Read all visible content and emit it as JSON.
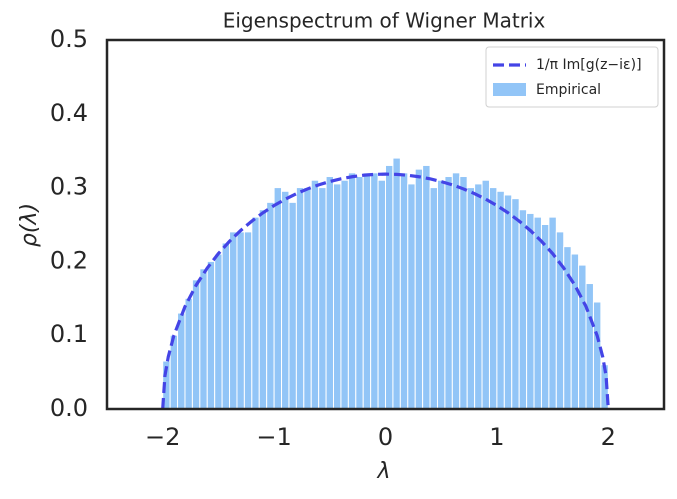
{
  "chart_data": {
    "type": "histogram",
    "title": "Eigenspectrum of Wigner Matrix",
    "x_label": "λ",
    "y_label": "ρ(λ)",
    "xlim": [
      -2.5,
      2.5
    ],
    "ylim": [
      0,
      0.5
    ],
    "xticks": [
      {
        "value": -2,
        "label": "−2"
      },
      {
        "value": -1,
        "label": "−1"
      },
      0,
      1,
      2
    ],
    "yticks": [
      {
        "value": 0,
        "label": "0.0"
      },
      0.1,
      0.2,
      0.3,
      0.4,
      0.5
    ],
    "grid": false,
    "legend": "upper right",
    "histogram": {
      "name": "Empirical",
      "color": "#92c5f7",
      "bins": [
        -2,
        -1.9333,
        -1.8667,
        -1.8,
        -1.7333,
        -1.6667,
        -1.6,
        -1.5333,
        -1.4667,
        -1.4,
        -1.3333,
        -1.2667,
        -1.2,
        -1.1333,
        -1.0667,
        -1,
        -0.9333,
        -0.8667,
        -0.8,
        -0.7333,
        -0.6667,
        -0.6,
        -0.5333,
        -0.4667,
        -0.4,
        -0.3333,
        -0.2667,
        -0.2,
        -0.1333,
        -0.0667,
        0,
        0.0667,
        0.1333,
        0.2,
        0.2667,
        0.3333,
        0.4,
        0.4667,
        0.5333,
        0.6,
        0.6667,
        0.7333,
        0.8,
        0.8667,
        0.9333,
        1,
        1.0667,
        1.1333,
        1.2,
        1.2667,
        1.3333,
        1.4,
        1.4667,
        1.5333,
        1.6,
        1.6667,
        1.7333,
        1.8,
        1.8667,
        1.9333,
        2
      ],
      "values": [
        0.065,
        0.1,
        0.13,
        0.15,
        0.175,
        0.19,
        0.2,
        0.21,
        0.225,
        0.24,
        0.24,
        0.24,
        0.26,
        0.27,
        0.28,
        0.3,
        0.295,
        0.28,
        0.3,
        0.3,
        0.31,
        0.3,
        0.315,
        0.305,
        0.31,
        0.32,
        0.315,
        0.32,
        0.32,
        0.31,
        0.33,
        0.34,
        0.32,
        0.305,
        0.325,
        0.33,
        0.3,
        0.31,
        0.315,
        0.32,
        0.315,
        0.3,
        0.305,
        0.31,
        0.3,
        0.295,
        0.29,
        0.285,
        0.27,
        0.265,
        0.26,
        0.25,
        0.26,
        0.24,
        0.22,
        0.21,
        0.195,
        0.17,
        0.145,
        0.06
      ]
    },
    "line": {
      "name": "1/π Im[g(z−iε)]",
      "color": "#4444e6",
      "x": [
        -2,
        -1.98,
        -1.95,
        -1.9,
        -1.8,
        -1.7,
        -1.6,
        -1.5,
        -1.4,
        -1.3,
        -1.2,
        -1.1,
        -1,
        -0.9,
        -0.8,
        -0.7,
        -0.6,
        -0.5,
        -0.4,
        -0.3,
        -0.2,
        -0.1,
        0,
        0.1,
        0.2,
        0.3,
        0.4,
        0.5,
        0.6,
        0.7,
        0.8,
        0.9,
        1,
        1.1,
        1.2,
        1.3,
        1.4,
        1.5,
        1.6,
        1.7,
        1.8,
        1.9,
        1.95,
        1.98,
        2
      ],
      "values": [
        0,
        0.0449,
        0.0707,
        0.0994,
        0.1388,
        0.1677,
        0.191,
        0.2106,
        0.2273,
        0.2419,
        0.2546,
        0.2659,
        0.2757,
        0.2843,
        0.2918,
        0.2982,
        0.3037,
        0.3082,
        0.3119,
        0.3147,
        0.3167,
        0.3179,
        0.3183,
        0.3179,
        0.3167,
        0.3147,
        0.3119,
        0.3082,
        0.3037,
        0.2982,
        0.2918,
        0.2843,
        0.2757,
        0.2659,
        0.2546,
        0.2419,
        0.2273,
        0.2106,
        0.191,
        0.1677,
        0.1388,
        0.0994,
        0.0707,
        0.0449,
        0
      ]
    }
  }
}
